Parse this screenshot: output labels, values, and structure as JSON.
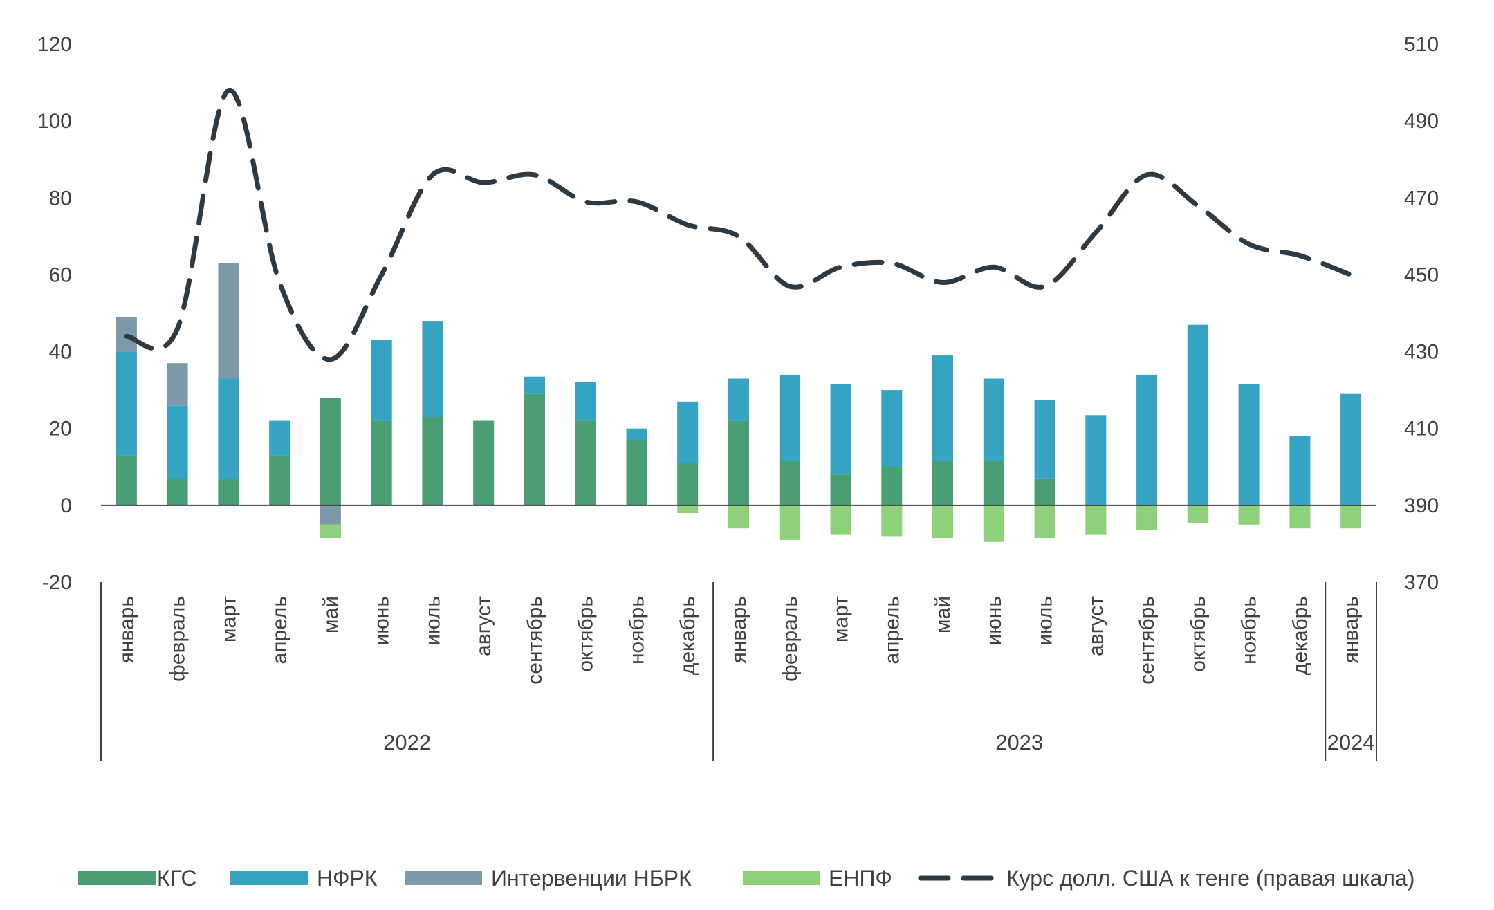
{
  "chart_data": {
    "type": "bar",
    "stacked": true,
    "categories": [
      "январь",
      "февраль",
      "март",
      "апрель",
      "май",
      "июнь",
      "июль",
      "август",
      "сентябрь",
      "октябрь",
      "ноябрь",
      "декабрь",
      "январь",
      "февраль",
      "март",
      "апрель",
      "май",
      "июнь",
      "июль",
      "август",
      "сентябрь",
      "октябрь",
      "ноябрь",
      "декабрь",
      "январь"
    ],
    "groups": [
      {
        "label": "2022",
        "start": 0,
        "end": 11
      },
      {
        "label": "2023",
        "start": 12,
        "end": 23
      },
      {
        "label": "2024",
        "start": 24,
        "end": 24
      }
    ],
    "series": [
      {
        "name": "КГС",
        "color": "#4a9e74",
        "values": [
          13,
          7,
          7,
          13,
          28,
          22,
          23,
          22,
          29,
          22,
          17,
          11,
          22,
          11.5,
          8,
          10,
          11.5,
          11.5,
          7,
          0,
          0,
          0,
          0,
          0,
          0
        ]
      },
      {
        "name": "НФРК",
        "color": "#34a4c2",
        "values": [
          27,
          19,
          26,
          9,
          0,
          21,
          25,
          0,
          4.5,
          10,
          3,
          16,
          11,
          22.5,
          23.5,
          20,
          27.5,
          21.5,
          20.5,
          23.5,
          34,
          47,
          31.5,
          18,
          29
        ]
      },
      {
        "name": "Интервенции НБРК",
        "color": "#7b99a9",
        "values": [
          9,
          11,
          30,
          0,
          -5,
          0,
          0,
          0,
          0,
          0,
          0,
          0,
          0,
          0,
          0,
          0,
          0,
          0,
          0,
          0,
          0,
          0,
          0,
          0,
          0
        ]
      },
      {
        "name": "ЕНПФ",
        "color": "#8fd07a",
        "values": [
          0,
          0,
          0,
          0,
          -3.5,
          0,
          0,
          0,
          0,
          0,
          0,
          -2,
          -6,
          -9,
          -7.5,
          -8,
          -8.5,
          -9.5,
          -8.5,
          -7.5,
          -6.5,
          -4.5,
          -5,
          -6,
          -6
        ]
      }
    ],
    "line": {
      "name": "Курс долл. США к тенге (правая шкала)",
      "color": "#2e3a43",
      "values": [
        434,
        436,
        498,
        448,
        428,
        450,
        476,
        474,
        476,
        469,
        469,
        463,
        460,
        447,
        452,
        453,
        448,
        452,
        447,
        461,
        476,
        468,
        458,
        455,
        450
      ]
    },
    "y_left": {
      "min": -20,
      "max": 120,
      "ticks": [
        -20,
        0,
        20,
        40,
        60,
        80,
        100,
        120
      ]
    },
    "y_right": {
      "min": 370,
      "max": 510,
      "ticks": [
        370,
        390,
        410,
        430,
        450,
        470,
        490,
        510
      ]
    },
    "legend_position": "bottom",
    "grid": false
  }
}
